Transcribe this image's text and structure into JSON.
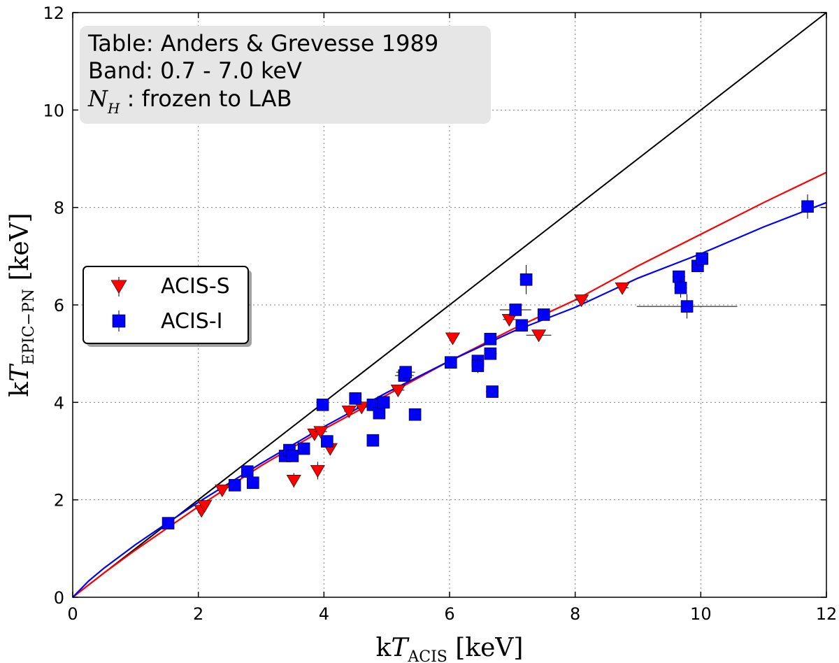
{
  "chart_data": {
    "type": "scatter",
    "xlabel": {
      "prefix": "k",
      "var": "T",
      "sub": "ACIS",
      "unit": " [keV]"
    },
    "ylabel": {
      "prefix": "k",
      "var": "T",
      "sub": "EPIC−PN",
      "unit": " [keV]"
    },
    "xlim": [
      0,
      12
    ],
    "ylim": [
      0,
      12
    ],
    "xticks": [
      "0",
      "2",
      "4",
      "6",
      "8",
      "10",
      "12"
    ],
    "yticks": [
      "0",
      "2",
      "4",
      "6",
      "8",
      "10",
      "12"
    ],
    "grid": true,
    "annotation": {
      "line1": "Table: Anders & Grevesse 1989",
      "line2": "Band: 0.7 - 7.0 keV",
      "line3_var": "N",
      "line3_sub": "H",
      "line3_text": " : frozen to LAB"
    },
    "legend": {
      "position": "center-left",
      "entries": [
        {
          "label": "ACIS-S",
          "color": "#ff0000",
          "marker": "triangle-down"
        },
        {
          "label": "ACIS-I",
          "color": "#0000ff",
          "marker": "square"
        }
      ]
    },
    "reference_line": {
      "name": "one-to-one",
      "color": "#000000",
      "points": [
        [
          0,
          0
        ],
        [
          12,
          12
        ]
      ]
    },
    "fits": [
      {
        "name": "ACIS-S fit",
        "color": "#ff0000",
        "points": [
          [
            0,
            0
          ],
          [
            0.5,
            0.5
          ],
          [
            1,
            0.97
          ],
          [
            2,
            1.86
          ],
          [
            3,
            2.7
          ],
          [
            4,
            3.45
          ],
          [
            5,
            4.15
          ],
          [
            6,
            4.85
          ],
          [
            7,
            5.5
          ],
          [
            8,
            6.1
          ],
          [
            9,
            6.8
          ],
          [
            10,
            7.45
          ],
          [
            11,
            8.1
          ],
          [
            12,
            8.72
          ]
        ]
      },
      {
        "name": "ACIS-I fit",
        "color": "#0000ff",
        "points": [
          [
            0,
            0
          ],
          [
            0.25,
            0.33
          ],
          [
            0.5,
            0.6
          ],
          [
            1,
            1.08
          ],
          [
            1.5,
            1.52
          ],
          [
            2,
            1.95
          ],
          [
            3,
            2.75
          ],
          [
            4,
            3.5
          ],
          [
            5,
            4.2
          ],
          [
            6,
            4.85
          ],
          [
            7,
            5.45
          ],
          [
            8,
            5.95
          ],
          [
            9,
            6.55
          ],
          [
            10,
            7.05
          ],
          [
            11,
            7.6
          ],
          [
            12,
            8.1
          ]
        ]
      }
    ],
    "series": [
      {
        "name": "ACIS-S",
        "marker": "triangle-down",
        "color": "#ff0000",
        "points": [
          [
            2.05,
            1.78,
            0.05,
            0.1
          ],
          [
            2.1,
            1.88,
            0.05,
            0.1
          ],
          [
            2.38,
            2.2,
            0.05,
            0.1
          ],
          [
            3.52,
            2.4,
            0.06,
            0.15
          ],
          [
            3.85,
            3.35,
            0.08,
            0.1
          ],
          [
            3.9,
            2.6,
            0.05,
            0.18
          ],
          [
            3.95,
            3.4,
            0.1,
            0.1
          ],
          [
            4.1,
            3.05,
            0.05,
            0.1
          ],
          [
            4.4,
            3.82,
            0.08,
            0.12
          ],
          [
            4.6,
            3.9,
            0.08,
            0.12
          ],
          [
            5.18,
            4.25,
            0.1,
            0.1
          ],
          [
            6.05,
            5.32,
            0.05,
            0.1
          ],
          [
            6.95,
            5.7,
            0.1,
            0.12
          ],
          [
            7.42,
            5.38,
            0.2,
            0.1
          ],
          [
            8.1,
            6.1,
            0.1,
            0.1
          ],
          [
            8.75,
            6.35,
            0.1,
            0.1
          ]
        ]
      },
      {
        "name": "ACIS-I",
        "marker": "square",
        "color": "#0000ff",
        "points": [
          [
            1.52,
            1.52,
            0.05,
            0.05
          ],
          [
            2.58,
            2.3,
            0.05,
            0.1
          ],
          [
            2.78,
            2.58,
            0.05,
            0.1
          ],
          [
            2.87,
            2.35,
            0.05,
            0.1
          ],
          [
            3.38,
            2.9,
            0.05,
            0.1
          ],
          [
            3.45,
            3.02,
            0.05,
            0.1
          ],
          [
            3.5,
            2.9,
            0.05,
            0.1
          ],
          [
            3.68,
            3.05,
            0.05,
            0.1
          ],
          [
            3.98,
            3.95,
            0.05,
            0.1
          ],
          [
            4.05,
            3.2,
            0.05,
            0.1
          ],
          [
            4.5,
            4.08,
            0.05,
            0.1
          ],
          [
            4.78,
            3.95,
            0.05,
            0.1
          ],
          [
            4.78,
            3.22,
            0.05,
            0.1
          ],
          [
            4.88,
            3.78,
            0.05,
            0.1
          ],
          [
            4.95,
            4.0,
            0.05,
            0.1
          ],
          [
            5.28,
            4.55,
            0.15,
            0.1
          ],
          [
            5.3,
            4.62,
            0.15,
            0.1
          ],
          [
            5.45,
            3.75,
            0.05,
            0.1
          ],
          [
            6.02,
            4.82,
            0.05,
            0.1
          ],
          [
            6.45,
            4.85,
            0.05,
            0.12
          ],
          [
            6.45,
            4.75,
            0.05,
            0.15
          ],
          [
            6.65,
            5.3,
            0.1,
            0.1
          ],
          [
            6.65,
            5.0,
            0.1,
            0.12
          ],
          [
            6.68,
            4.22,
            0.1,
            0.1
          ],
          [
            7.05,
            5.9,
            0.25,
            0.1
          ],
          [
            7.15,
            5.58,
            0.1,
            0.1
          ],
          [
            7.22,
            6.52,
            0.1,
            0.3
          ],
          [
            7.5,
            5.8,
            0.1,
            0.1
          ],
          [
            9.65,
            6.58,
            0.1,
            0.1
          ],
          [
            9.68,
            6.35,
            0.1,
            0.2
          ],
          [
            9.78,
            5.97,
            0.8,
            0.25
          ],
          [
            9.95,
            6.8,
            0.1,
            0.1
          ],
          [
            10.02,
            6.95,
            0.1,
            0.1
          ],
          [
            11.7,
            8.02,
            0.1,
            0.25
          ]
        ]
      }
    ]
  }
}
